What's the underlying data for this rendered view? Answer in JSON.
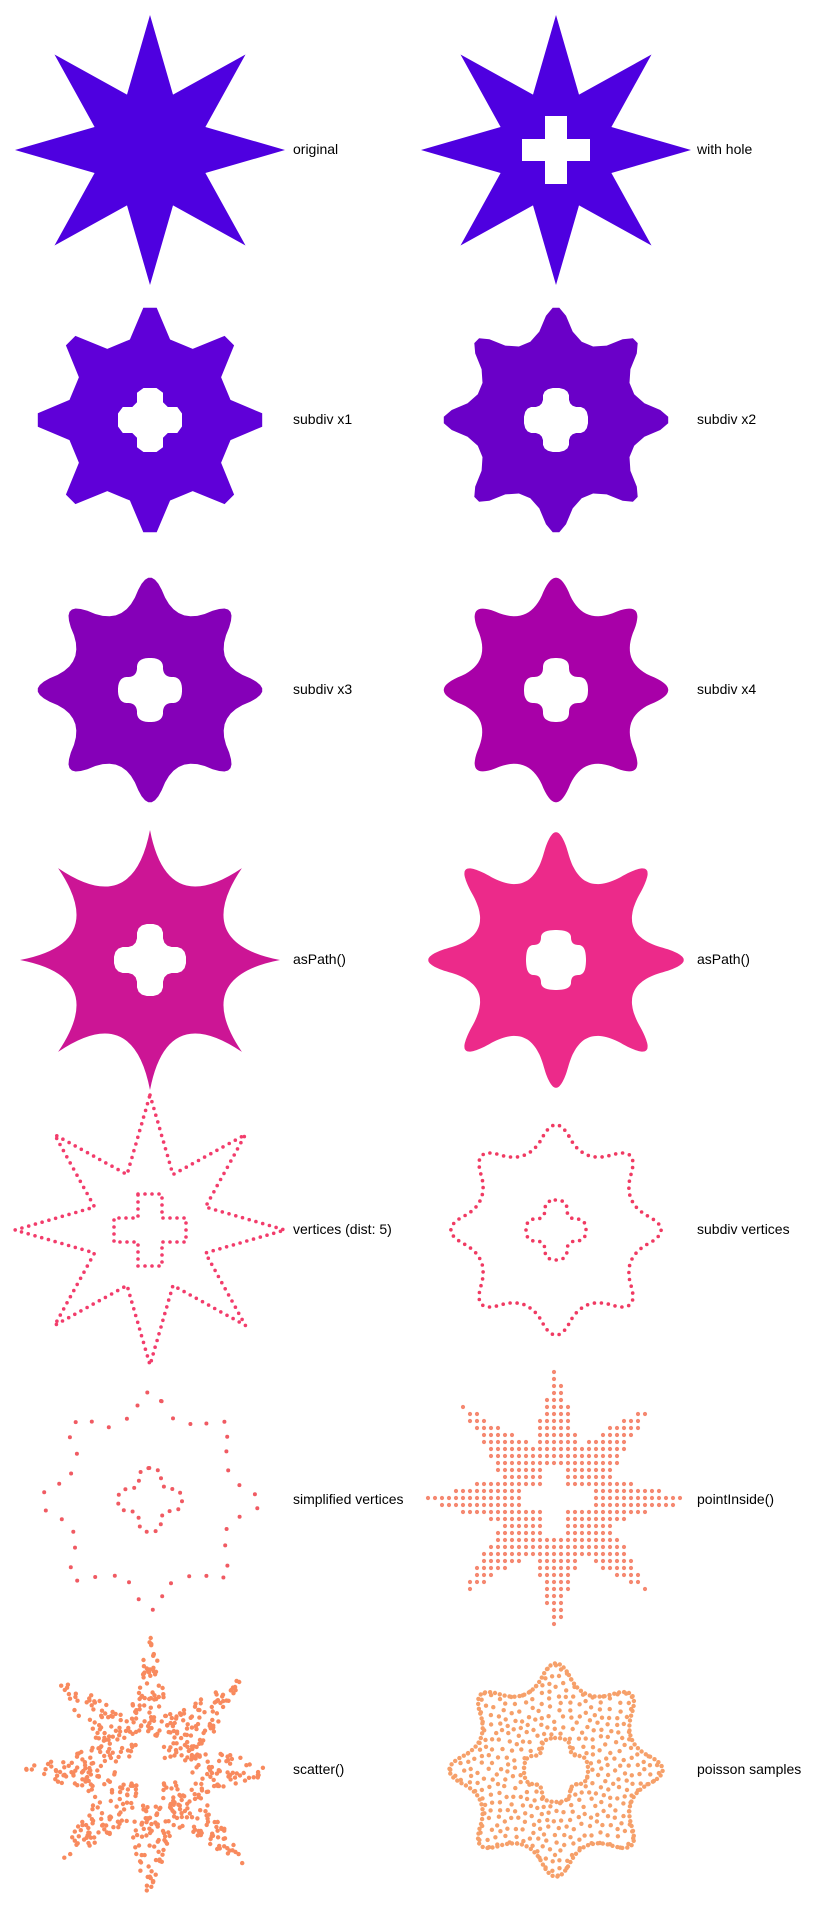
{
  "panels": [
    {
      "label": "original",
      "color": "#4e00e0"
    },
    {
      "label": "with hole",
      "color": "#4e00e0"
    },
    {
      "label": "subdiv x1",
      "color": "#5f00d8"
    },
    {
      "label": "subdiv x2",
      "color": "#6a00c8"
    },
    {
      "label": "subdiv x3",
      "color": "#8500b8"
    },
    {
      "label": "subdiv x4",
      "color": "#a800a8"
    },
    {
      "label": "asPath()",
      "color": "#cc1595"
    },
    {
      "label": "asPath()",
      "color": "#ec2a8a"
    },
    {
      "label": "vertices (dist: 5)",
      "color": "#f23c6b"
    },
    {
      "label": "subdiv vertices",
      "color": "#f03a62"
    },
    {
      "label": "simplified vertices",
      "color": "#f05a62"
    },
    {
      "label": "pointInside()",
      "color": "#f58870"
    },
    {
      "label": "scatter()",
      "color": "#f88a5e"
    },
    {
      "label": "poisson samples",
      "color": "#f6a06a"
    }
  ]
}
